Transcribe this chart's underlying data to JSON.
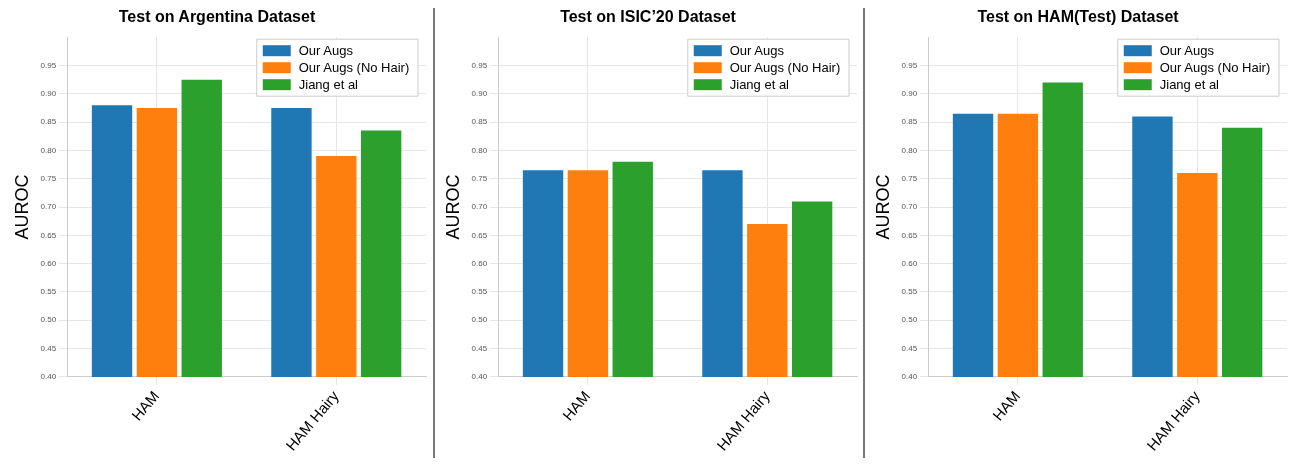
{
  "chart_data": [
    {
      "type": "bar",
      "title": "Test on Argentina Dataset",
      "ylabel": "AUROC",
      "categories": [
        "HAM",
        "HAM Hairy"
      ],
      "series": [
        {
          "name": "Our Augs",
          "color": "#1f77b4",
          "values": [
            0.88,
            0.875
          ]
        },
        {
          "name": "Our Augs (No Hair)",
          "color": "#ff7f0e",
          "values": [
            0.875,
            0.79
          ]
        },
        {
          "name": "Jiang et al",
          "color": "#2ca02c",
          "values": [
            0.925,
            0.835
          ]
        }
      ],
      "ylim": [
        0.4,
        1.0
      ],
      "yticks": [
        {
          "value": 0.4,
          "label": "0.40"
        },
        0.45,
        {
          "value": 0.5,
          "label": "0.50"
        },
        0.55,
        {
          "value": 0.6,
          "label": "0.60"
        },
        0.65,
        {
          "value": 0.7,
          "label": "0.70"
        },
        0.75,
        {
          "value": 0.8,
          "label": "0.80"
        },
        0.85,
        {
          "value": 0.9,
          "label": "0.90"
        },
        0.95
      ],
      "grid": true,
      "legend": "top right"
    },
    {
      "type": "bar",
      "title": "Test on ISIC’20 Dataset",
      "ylabel": "AUROC",
      "categories": [
        "HAM",
        "HAM Hairy"
      ],
      "series": [
        {
          "name": "Our Augs",
          "color": "#1f77b4",
          "values": [
            0.765,
            0.765
          ]
        },
        {
          "name": "Our Augs (No Hair)",
          "color": "#ff7f0e",
          "values": [
            0.765,
            0.67
          ]
        },
        {
          "name": "Jiang et al",
          "color": "#2ca02c",
          "values": [
            0.78,
            0.71
          ]
        }
      ],
      "ylim": [
        0.4,
        1.0
      ],
      "yticks": [
        {
          "value": 0.4,
          "label": "0.40"
        },
        0.45,
        {
          "value": 0.5,
          "label": "0.50"
        },
        0.55,
        {
          "value": 0.6,
          "label": "0.60"
        },
        0.65,
        {
          "value": 0.7,
          "label": "0.70"
        },
        0.75,
        {
          "value": 0.8,
          "label": "0.80"
        },
        0.85,
        {
          "value": 0.9,
          "label": "0.90"
        },
        0.95
      ],
      "grid": true,
      "legend": "top right"
    },
    {
      "type": "bar",
      "title": "Test on HAM(Test) Dataset",
      "ylabel": "AUROC",
      "categories": [
        "HAM",
        "HAM Hairy"
      ],
      "series": [
        {
          "name": "Our Augs",
          "color": "#1f77b4",
          "values": [
            0.865,
            0.86
          ]
        },
        {
          "name": "Our Augs (No Hair)",
          "color": "#ff7f0e",
          "values": [
            0.865,
            0.76
          ]
        },
        {
          "name": "Jiang et al",
          "color": "#2ca02c",
          "values": [
            0.92,
            0.84
          ]
        }
      ],
      "ylim": [
        0.4,
        1.0
      ],
      "yticks": [
        {
          "value": 0.4,
          "label": "0.40"
        },
        0.45,
        {
          "value": 0.5,
          "label": "0.50"
        },
        0.55,
        {
          "value": 0.6,
          "label": "0.60"
        },
        0.65,
        {
          "value": 0.7,
          "label": "0.70"
        },
        0.75,
        {
          "value": 0.8,
          "label": "0.80"
        },
        0.85,
        {
          "value": 0.9,
          "label": "0.90"
        },
        0.95
      ],
      "grid": true,
      "legend": "top right"
    }
  ]
}
